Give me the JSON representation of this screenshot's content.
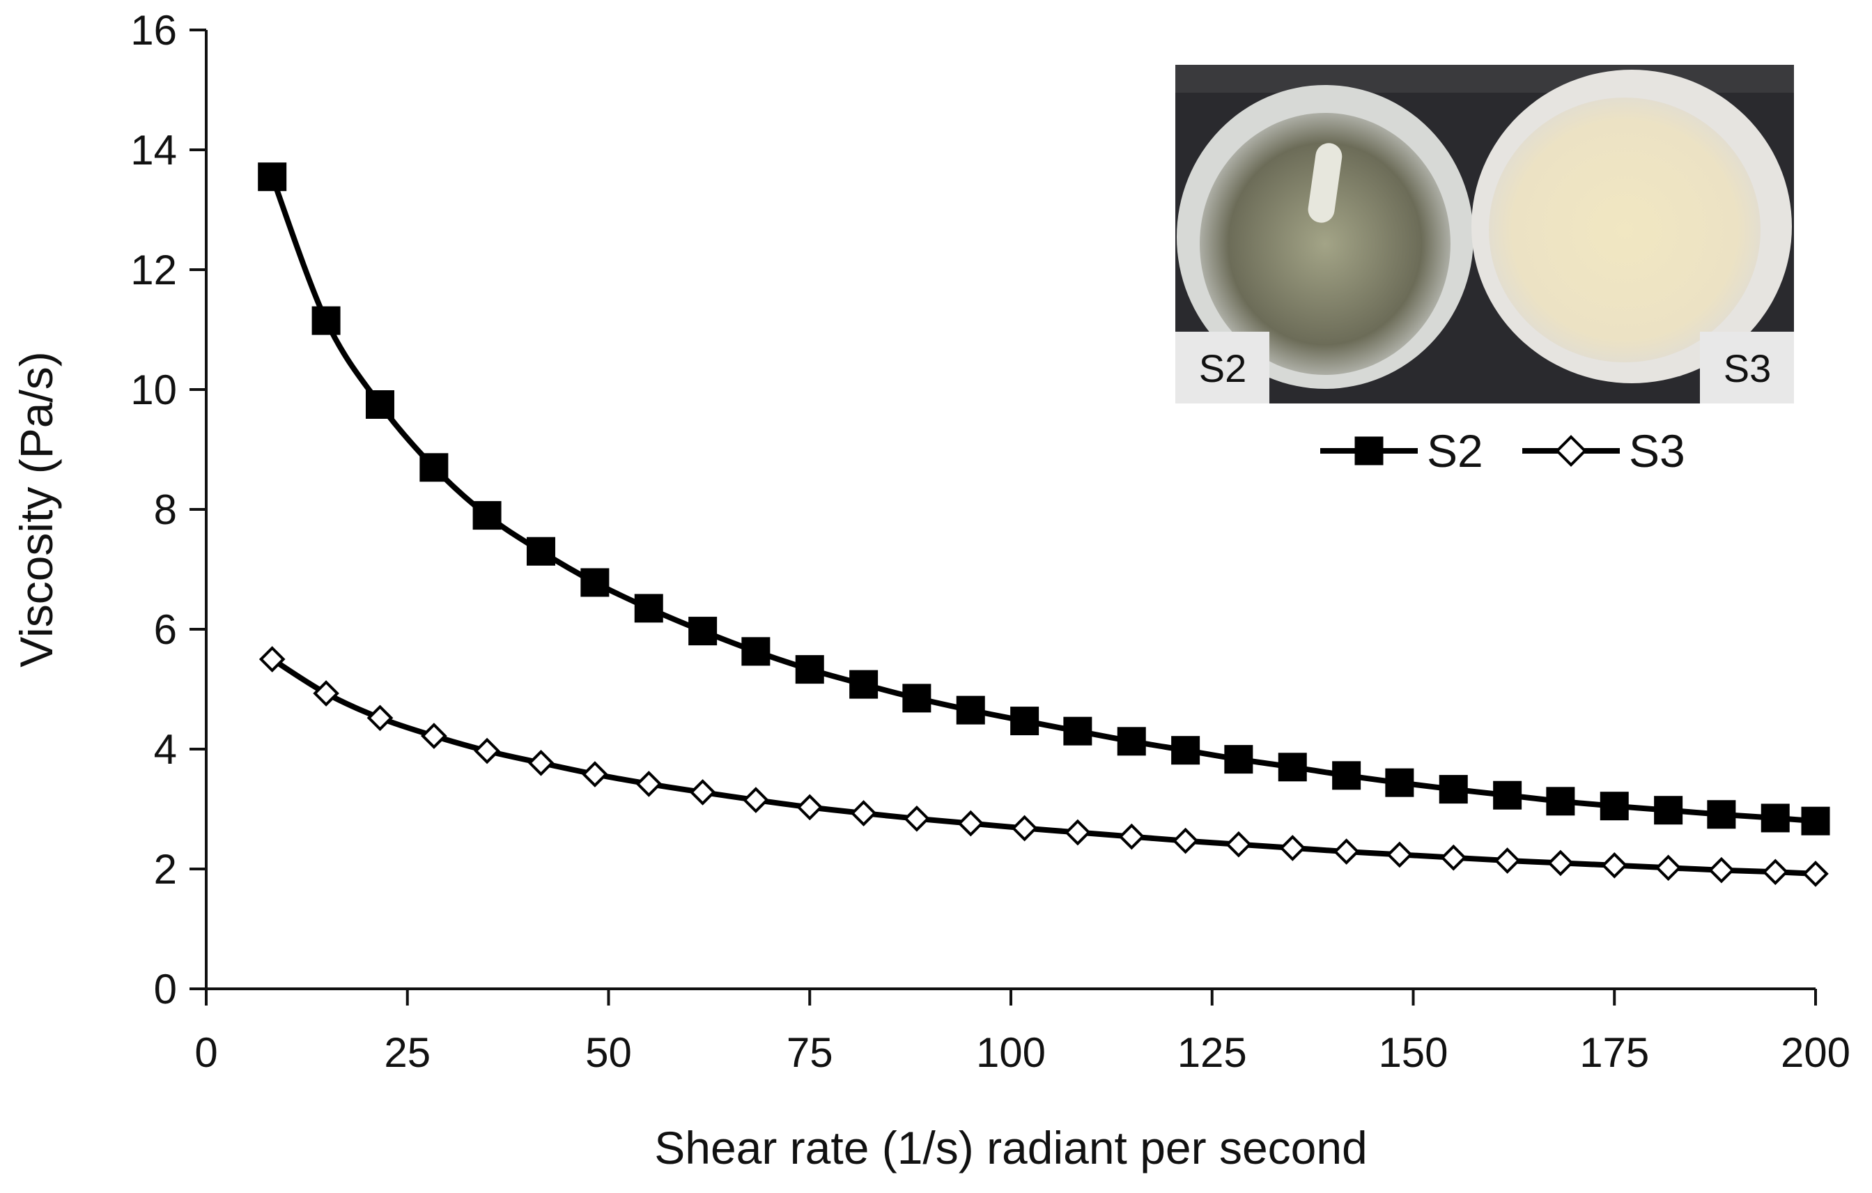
{
  "chart_data": {
    "type": "line",
    "title": "",
    "xlabel": "Shear rate (1/s) radiant per second",
    "ylabel": "Viscosity (Pa/s)",
    "xlim": [
      0,
      200
    ],
    "ylim": [
      0,
      16
    ],
    "xticks": [
      0,
      25,
      50,
      75,
      100,
      125,
      150,
      175,
      200
    ],
    "xtick_labels": [
      "0",
      "25",
      "50",
      "75",
      "100",
      "125",
      "150",
      "175",
      "200"
    ],
    "yticks": [
      0,
      2,
      4,
      6,
      8,
      10,
      12,
      14,
      16
    ],
    "ytick_labels": [
      "0",
      "2",
      "4",
      "6",
      "8",
      "10",
      "12",
      "14",
      "16"
    ],
    "grid": false,
    "legend_position": "top-right",
    "x": [
      8.2,
      14.9,
      21.6,
      28.3,
      34.9,
      41.6,
      48.3,
      55.0,
      61.7,
      68.3,
      75.0,
      81.7,
      88.3,
      95.0,
      101.7,
      108.3,
      115.0,
      121.7,
      128.3,
      135.0,
      141.7,
      148.3,
      155.0,
      161.7,
      168.3,
      175.0,
      181.7,
      188.3,
      195.0,
      200.0
    ],
    "series": [
      {
        "name": "S2",
        "marker": "filled-square",
        "color": "#000000",
        "values": [
          13.55,
          11.15,
          9.75,
          8.7,
          7.9,
          7.3,
          6.78,
          6.35,
          5.97,
          5.63,
          5.33,
          5.08,
          4.85,
          4.65,
          4.47,
          4.3,
          4.13,
          3.98,
          3.83,
          3.7,
          3.56,
          3.44,
          3.33,
          3.23,
          3.13,
          3.05,
          2.98,
          2.91,
          2.85,
          2.8
        ]
      },
      {
        "name": "S3",
        "marker": "open-diamond",
        "color": "#000000",
        "values": [
          5.5,
          4.93,
          4.52,
          4.22,
          3.97,
          3.77,
          3.58,
          3.42,
          3.28,
          3.15,
          3.03,
          2.93,
          2.84,
          2.76,
          2.68,
          2.61,
          2.54,
          2.47,
          2.41,
          2.35,
          2.29,
          2.24,
          2.19,
          2.14,
          2.1,
          2.06,
          2.02,
          1.98,
          1.95,
          1.92
        ]
      }
    ],
    "inset": {
      "kind": "photo",
      "labels": [
        "S2",
        "S3"
      ]
    }
  }
}
